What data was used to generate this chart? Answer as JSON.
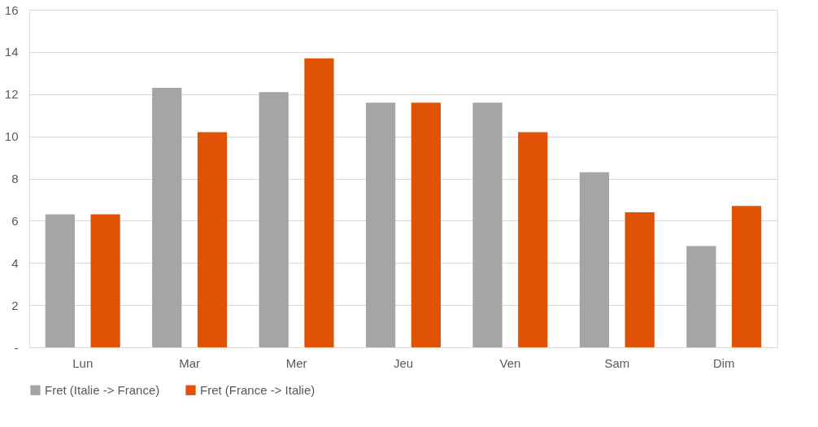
{
  "chart_data": {
    "type": "bar",
    "categories": [
      "Lun",
      "Mar",
      "Mer",
      "Jeu",
      "Ven",
      "Sam",
      "Dim"
    ],
    "series": [
      {
        "name": "Fret (Italie -> France)",
        "color": "#a5a5a5",
        "values": [
          6.3,
          12.3,
          12.1,
          11.6,
          11.6,
          8.3,
          4.8
        ]
      },
      {
        "name": "Fret (France -> Italie)",
        "color": "#e05206",
        "values": [
          6.3,
          10.2,
          13.7,
          11.6,
          10.2,
          6.4,
          6.7
        ]
      }
    ],
    "ylim": [
      0,
      16
    ],
    "yticks": [
      {
        "value": 0,
        "label": "-"
      },
      2,
      4,
      6,
      8,
      10,
      12,
      14,
      16
    ],
    "grid": "y",
    "legend": "bottom"
  }
}
